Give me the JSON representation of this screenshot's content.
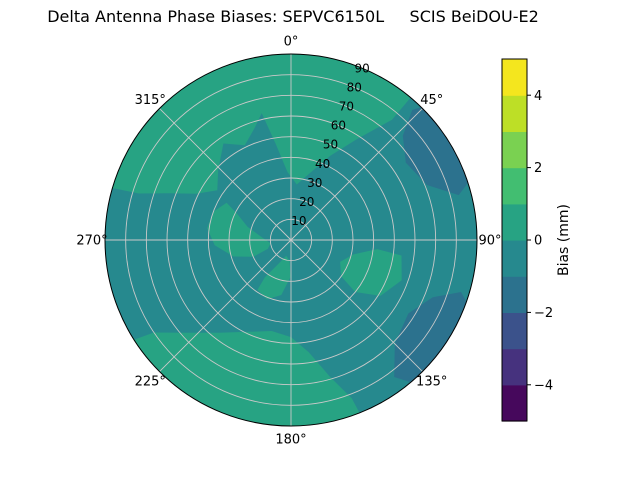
{
  "chart_data": {
    "type": "heatmap",
    "projection": "polar",
    "title": "Delta Antenna Phase Biases: SEPVC6150L     SCIS BeiDOU-E2",
    "theta_zero_location": "top",
    "theta_direction": "clockwise",
    "theta_tick_degrees": [
      0,
      45,
      90,
      135,
      180,
      225,
      270,
      315
    ],
    "theta_tick_labels": [
      "0°",
      "45°",
      "90°",
      "135°",
      "180°",
      "225°",
      "270°",
      "315°"
    ],
    "r_ticks": [
      10,
      20,
      30,
      40,
      50,
      60,
      70,
      80,
      90
    ],
    "r_max": 90,
    "r_label_angle_deg": 22.5,
    "grid_on": true,
    "grid_color": "#c9c9c9",
    "outline_color": "#000000",
    "colorbar": {
      "label": "Bias (mm)",
      "min": -5,
      "max": 5,
      "ticks": [
        -4,
        -2,
        0,
        2,
        4
      ],
      "tick_labels": [
        "−4",
        "−2",
        "0",
        "2",
        "4"
      ],
      "level_step_mm": 1,
      "band_colors": [
        "#46085c",
        "#46327e",
        "#3b528b",
        "#2c728e",
        "#26898e",
        "#27a383",
        "#42be71",
        "#7ad151",
        "#bddf26",
        "#f4e61e"
      ]
    },
    "field": {
      "units": "mm",
      "base_band": "-1 to 0",
      "base_color": "#26898e",
      "regions": [
        {
          "band": "0 to 1",
          "color": "#27a383",
          "points": [
            [
              286,
              95
            ],
            [
              300,
              96
            ],
            [
              314,
              97
            ],
            [
              328,
              97
            ],
            [
              342,
              96
            ],
            [
              354,
              96
            ],
            [
              6,
              96
            ],
            [
              18,
              96
            ],
            [
              30,
              96
            ],
            [
              40,
              94
            ],
            [
              40,
              76
            ],
            [
              33,
              58
            ],
            [
              25,
              45
            ],
            [
              15,
              33
            ],
            [
              6,
              27
            ],
            [
              357,
              33
            ],
            [
              351,
              47
            ],
            [
              347,
              63
            ],
            [
              342,
              57
            ],
            [
              334,
              51
            ],
            [
              325,
              57
            ],
            [
              314,
              49
            ],
            [
              304,
              43
            ],
            [
              296,
              51
            ],
            [
              291,
              63
            ],
            [
              287,
              77
            ]
          ]
        },
        {
          "band": "0 to 1",
          "color": "#27a383",
          "points": [
            [
              300,
              36
            ],
            [
              290,
              40
            ],
            [
              278,
              41
            ],
            [
              266,
              37
            ],
            [
              254,
              29
            ],
            [
              246,
              20
            ],
            [
              249,
              12
            ],
            [
              261,
              10
            ],
            [
              275,
              14
            ],
            [
              287,
              22
            ],
            [
              296,
              29
            ]
          ]
        },
        {
          "band": "0 to 1",
          "color": "#27a383",
          "points": [
            [
              214,
              29
            ],
            [
              202,
              31
            ],
            [
              190,
              27
            ],
            [
              181,
              18
            ],
            [
              184,
              10
            ],
            [
              197,
              8
            ],
            [
              209,
              14
            ],
            [
              215,
              22
            ]
          ]
        },
        {
          "band": "0 to 1",
          "color": "#27a383",
          "points": [
            [
              158,
              95
            ],
            [
              172,
              96
            ],
            [
              186,
              97
            ],
            [
              200,
              97
            ],
            [
              214,
              96
            ],
            [
              228,
              96
            ],
            [
              238,
              93
            ],
            [
              236,
              80
            ],
            [
              228,
              67
            ],
            [
              218,
              57
            ],
            [
              205,
              49
            ],
            [
              192,
              45
            ],
            [
              180,
              47
            ],
            [
              171,
              55
            ],
            [
              164,
              69
            ],
            [
              159,
              82
            ]
          ]
        },
        {
          "band": "0 to 1",
          "color": "#27a383",
          "points": [
            [
              98,
              54
            ],
            [
              110,
              57
            ],
            [
              122,
              51
            ],
            [
              129,
              40
            ],
            [
              126,
              30
            ],
            [
              114,
              26
            ],
            [
              103,
              31
            ],
            [
              96,
              42
            ]
          ]
        },
        {
          "band": "-2 to -1",
          "color": "#2c728e",
          "points": [
            [
              46,
              95
            ],
            [
              58,
              96
            ],
            [
              70,
              95
            ],
            [
              75,
              84
            ],
            [
              68,
              71
            ],
            [
              56,
              67
            ],
            [
              47,
              74
            ],
            [
              43,
              86
            ]
          ]
        },
        {
          "band": "-2 to -1",
          "color": "#2c728e",
          "points": [
            [
              112,
              95
            ],
            [
              124,
              96
            ],
            [
              138,
              95
            ],
            [
              143,
              83
            ],
            [
              135,
              71
            ],
            [
              122,
              67
            ],
            [
              112,
              74
            ],
            [
              107,
              86
            ]
          ]
        }
      ]
    }
  }
}
